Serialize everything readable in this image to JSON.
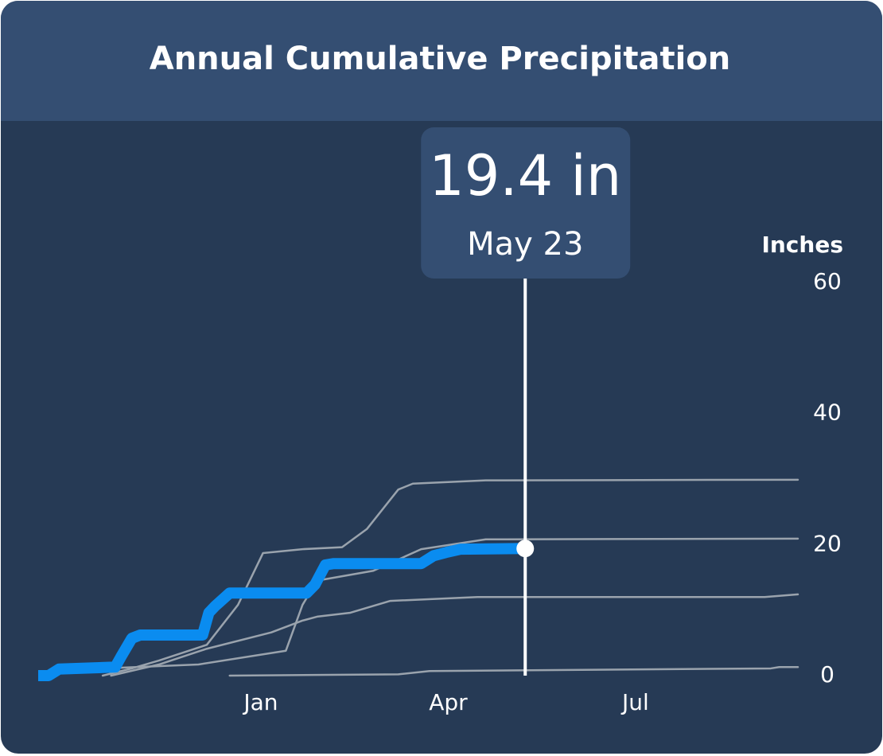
{
  "chart_data": {
    "type": "line",
    "title": "Annual Cumulative Precipitation",
    "y_label": "Inches",
    "tooltip": {
      "value_label": "19.4 in",
      "date": "May 23"
    },
    "xlim": [
      0,
      365
    ],
    "xticks": [
      {
        "value": 107,
        "label": "Jan"
      },
      {
        "value": 197,
        "label": "Apr"
      },
      {
        "value": 287,
        "label": "Jul"
      }
    ],
    "ylim": [
      0,
      60
    ],
    "yticks": [
      0,
      20,
      40,
      60
    ],
    "grid": false,
    "series": [
      {
        "color": "#9aa3ad",
        "x": [
          31,
          45,
          58,
          81,
          96,
          108,
          127,
          146,
          158,
          173,
          180,
          215,
          365
        ],
        "values": [
          0,
          1.1,
          2.3,
          4.7,
          10.8,
          18.7,
          19.3,
          19.6,
          22.4,
          28.4,
          29.3,
          29.8,
          29.9
        ]
      },
      {
        "color": "#9aa3ad",
        "x": [
          31,
          77,
          119,
          127,
          134,
          161,
          184,
          215,
          365
        ],
        "values": [
          1.1,
          1.7,
          3.8,
          10.8,
          14.5,
          16,
          19.3,
          20.8,
          20.9
        ]
      },
      {
        "color": "#9aa3ad",
        "x": [
          35,
          58,
          81,
          112,
          127,
          134,
          150,
          169,
          211,
          349,
          365
        ],
        "values": [
          0,
          1.7,
          4.1,
          6.6,
          8.4,
          9,
          9.6,
          11.4,
          12,
          12,
          12.4
        ]
      },
      {
        "color": "#9aa3ad",
        "x": [
          92,
          173,
          188,
          352,
          356,
          365
        ],
        "values": [
          0,
          0.2,
          0.7,
          1.1,
          1.3,
          1.3
        ]
      },
      {
        "color": "#0a8cf0",
        "x": [
          0,
          5,
          10,
          37,
          40,
          45,
          49,
          79,
          82,
          85,
          92,
          129,
          133,
          138,
          142,
          184,
          190,
          196,
          203,
          234
        ],
        "values": [
          0,
          0,
          1,
          1.3,
          3,
          5.7,
          6.2,
          6.2,
          9.6,
          10.6,
          12.6,
          12.6,
          13.9,
          16.9,
          17.1,
          17.1,
          18.3,
          18.8,
          19.3,
          19.4
        ]
      }
    ]
  }
}
